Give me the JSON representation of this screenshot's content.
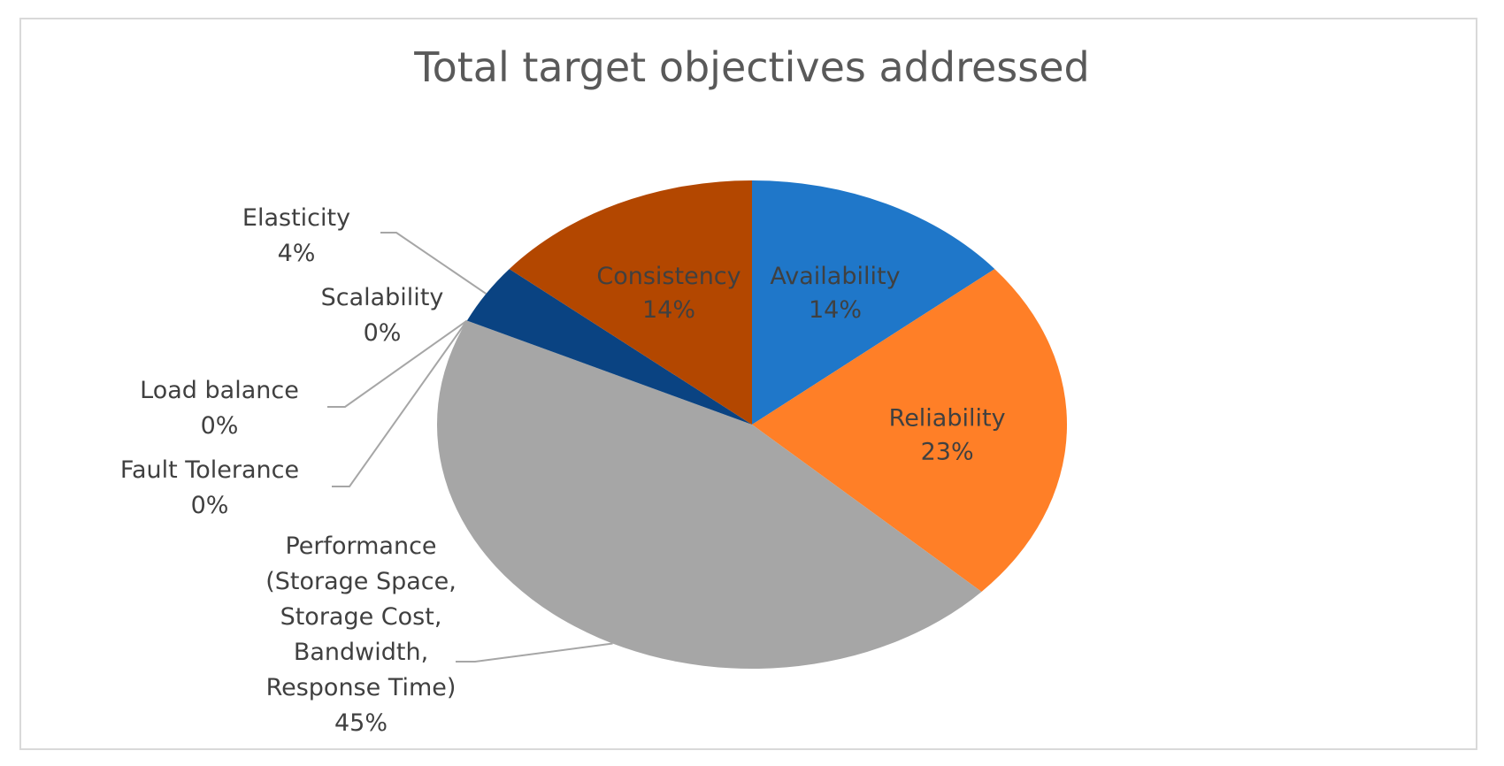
{
  "chart_data": {
    "type": "pie",
    "title": "Total target objectives addressed",
    "slices": [
      {
        "label": "Availability",
        "value": 14,
        "pct_label": "14%",
        "color": "#1f77c9"
      },
      {
        "label": "Reliability",
        "value": 23,
        "pct_label": "23%",
        "color": "#ff7f27"
      },
      {
        "label_lines": [
          "Performance",
          "(Storage Space,",
          "Storage Cost,",
          "Bandwidth,",
          "Response Time)"
        ],
        "value": 45,
        "pct_label": "45%",
        "color": "#a6a6a6"
      },
      {
        "label": "Fault Tolerance",
        "value": 0,
        "pct_label": "0%",
        "color": "#ffc000"
      },
      {
        "label": "Load balance",
        "value": 0,
        "pct_label": "0%",
        "color": "#5b9bd5"
      },
      {
        "label": "Scalability",
        "value": 0,
        "pct_label": "0%",
        "color": "#264478"
      },
      {
        "label": "Elasticity",
        "value": 4,
        "pct_label": "4%",
        "color": "#0a4382"
      },
      {
        "label": "Consistency",
        "value": 14,
        "pct_label": "14%",
        "color": "#b34700"
      }
    ]
  }
}
